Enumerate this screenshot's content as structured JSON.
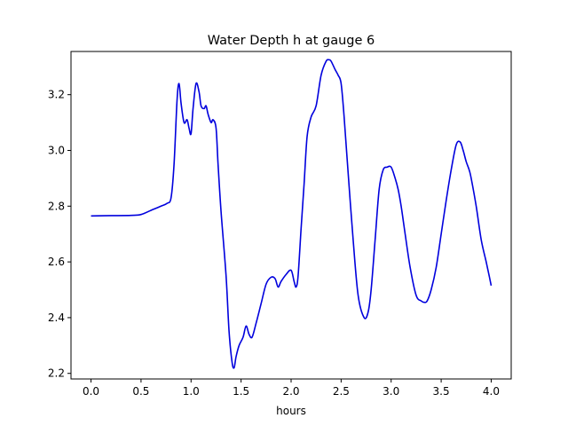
{
  "chart_data": {
    "type": "line",
    "title": "Water Depth h at gauge 6",
    "xlabel": "hours",
    "ylabel": "",
    "xlim": [
      -0.2,
      4.2
    ],
    "ylim": [
      2.18,
      3.355
    ],
    "x_ticks": [
      0.0,
      0.5,
      1.0,
      1.5,
      2.0,
      2.5,
      3.0,
      3.5,
      4.0
    ],
    "x_tick_labels": [
      "0.0",
      "0.5",
      "1.0",
      "1.5",
      "2.0",
      "2.5",
      "3.0",
      "3.5",
      "4.0"
    ],
    "y_ticks": [
      2.2,
      2.4,
      2.6,
      2.8,
      3.0,
      3.2
    ],
    "y_tick_labels": [
      "2.2",
      "2.4",
      "2.6",
      "2.8",
      "3.0",
      "3.2"
    ],
    "grid": false,
    "legend": "none",
    "series": [
      {
        "color": "#0000dd",
        "x": [
          0.0,
          0.2,
          0.4,
          0.5,
          0.6,
          0.7,
          0.76,
          0.8,
          0.83,
          0.86,
          0.88,
          0.9,
          0.93,
          0.96,
          0.98,
          1.0,
          1.02,
          1.05,
          1.08,
          1.1,
          1.13,
          1.15,
          1.17,
          1.2,
          1.22,
          1.25,
          1.27,
          1.3,
          1.35,
          1.38,
          1.41,
          1.43,
          1.45,
          1.48,
          1.52,
          1.55,
          1.58,
          1.61,
          1.65,
          1.7,
          1.75,
          1.8,
          1.84,
          1.87,
          1.9,
          1.95,
          2.0,
          2.03,
          2.05,
          2.07,
          2.1,
          2.13,
          2.16,
          2.2,
          2.25,
          2.3,
          2.35,
          2.38,
          2.4,
          2.44,
          2.47,
          2.5,
          2.53,
          2.57,
          2.62,
          2.67,
          2.73,
          2.77,
          2.8,
          2.84,
          2.88,
          2.92,
          2.96,
          3.0,
          3.04,
          3.07,
          3.1,
          3.14,
          3.19,
          3.25,
          3.3,
          3.33,
          3.36,
          3.4,
          3.45,
          3.5,
          3.55,
          3.6,
          3.65,
          3.69,
          3.72,
          3.75,
          3.78,
          3.8,
          3.85,
          3.9,
          3.95,
          3.98,
          4.0
        ],
        "y": [
          2.765,
          2.766,
          2.767,
          2.77,
          2.785,
          2.8,
          2.81,
          2.83,
          2.95,
          3.18,
          3.24,
          3.17,
          3.1,
          3.11,
          3.08,
          3.06,
          3.15,
          3.24,
          3.21,
          3.16,
          3.15,
          3.16,
          3.13,
          3.1,
          3.11,
          3.08,
          2.95,
          2.78,
          2.55,
          2.35,
          2.24,
          2.22,
          2.26,
          2.3,
          2.33,
          2.37,
          2.34,
          2.33,
          2.38,
          2.45,
          2.52,
          2.545,
          2.54,
          2.51,
          2.53,
          2.555,
          2.57,
          2.53,
          2.51,
          2.55,
          2.72,
          2.88,
          3.05,
          3.12,
          3.16,
          3.27,
          3.32,
          3.325,
          3.32,
          3.29,
          3.27,
          3.24,
          3.12,
          2.92,
          2.68,
          2.48,
          2.4,
          2.42,
          2.5,
          2.68,
          2.86,
          2.93,
          2.94,
          2.94,
          2.9,
          2.86,
          2.8,
          2.7,
          2.58,
          2.48,
          2.46,
          2.455,
          2.46,
          2.5,
          2.58,
          2.7,
          2.82,
          2.93,
          3.02,
          3.03,
          3.0,
          2.96,
          2.93,
          2.9,
          2.8,
          2.68,
          2.6,
          2.55,
          2.515
        ]
      }
    ]
  }
}
